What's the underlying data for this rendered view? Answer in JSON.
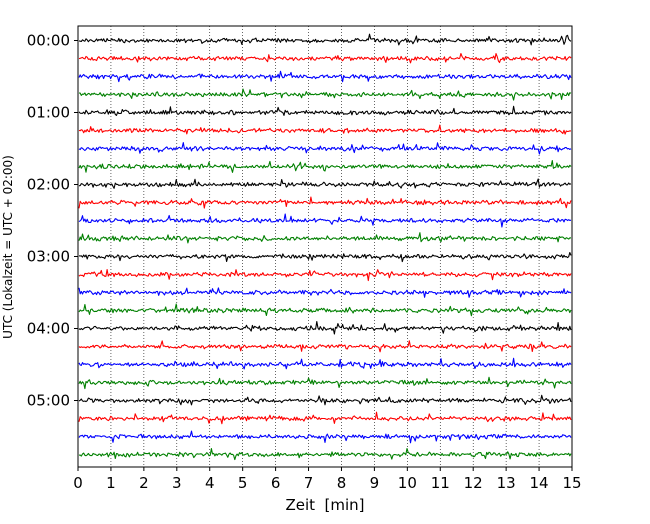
{
  "chart_data": {
    "type": "line",
    "title": "",
    "xlabel": "Zeit  [min]",
    "ylabel": "UTC (Lokalzeit = UTC + 02:00)",
    "xlim": [
      0,
      15
    ],
    "x_ticks": [
      "0",
      "1",
      "2",
      "3",
      "4",
      "5",
      "6",
      "7",
      "8",
      "9",
      "10",
      "11",
      "12",
      "13",
      "14",
      "15"
    ],
    "y_tick_labels": [
      "00:00",
      "01:00",
      "02:00",
      "03:00",
      "04:00",
      "05:00"
    ],
    "trace_interval_minutes": 15,
    "trace_count": 24,
    "trace_colors": [
      "#000000",
      "#ff0000",
      "#0000ff",
      "#008000"
    ],
    "grid": "vertical dotted at each minute",
    "legend": "none"
  }
}
